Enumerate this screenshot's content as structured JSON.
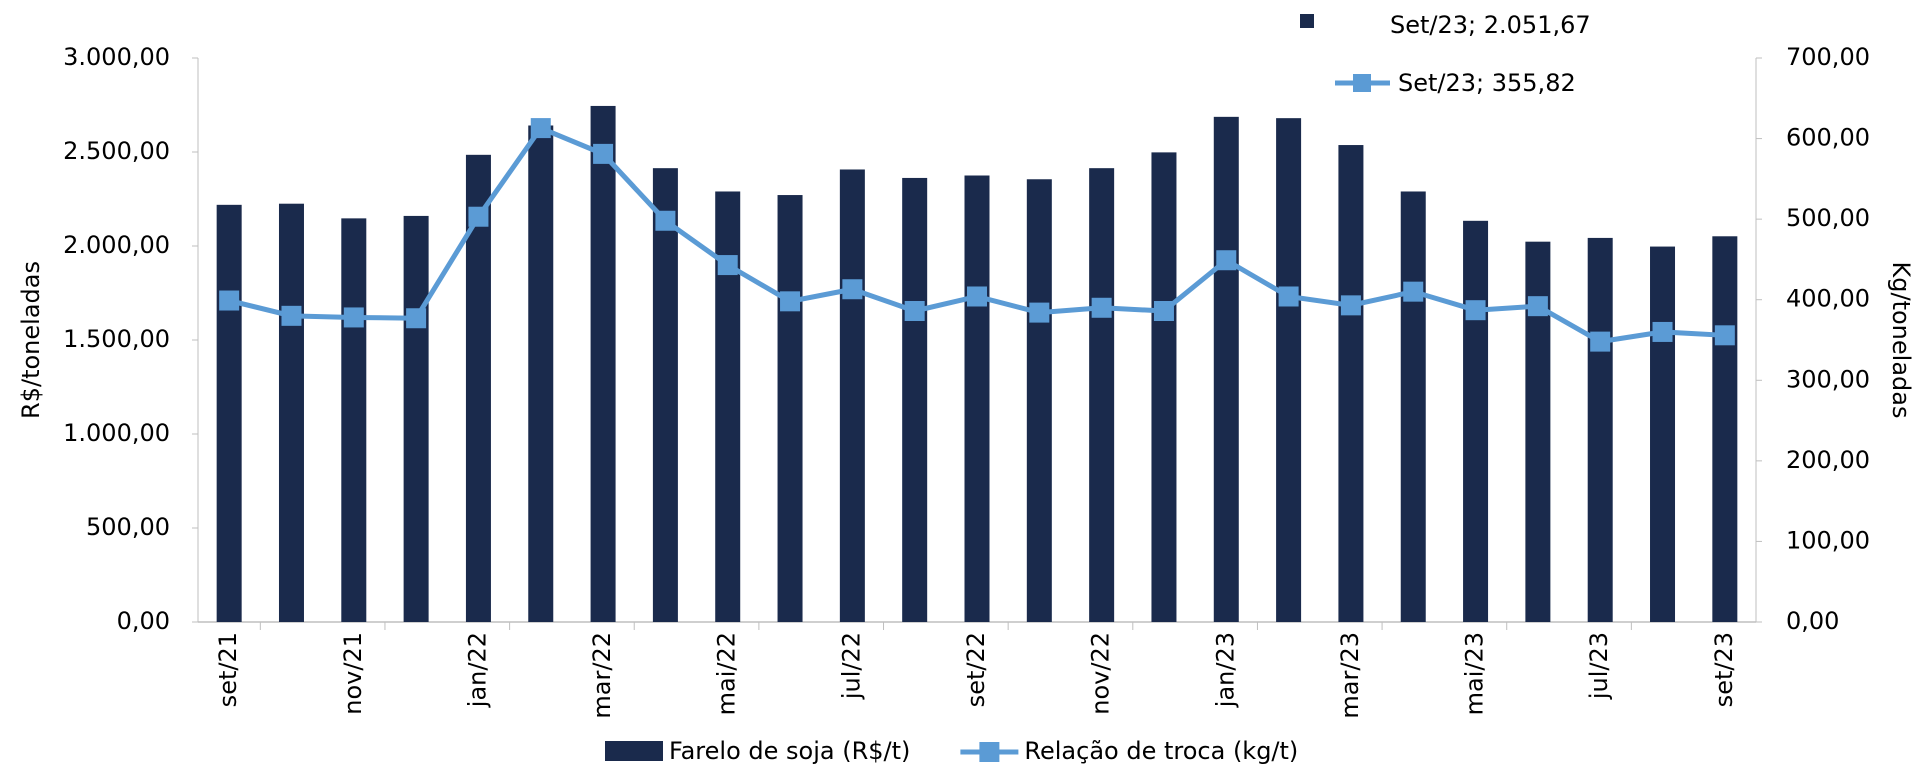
{
  "chart_data": {
    "type": "bar-line",
    "categories": [
      "set/21",
      null,
      "nov/21",
      null,
      "jan/22",
      null,
      "mar/22",
      null,
      "mai/22",
      null,
      "jul/22",
      null,
      "set/22",
      null,
      "nov/22",
      null,
      "jan/23",
      null,
      "mar/23",
      null,
      "mai/23",
      null,
      "jul/23",
      null,
      "set/23"
    ],
    "series": [
      {
        "name": "Farelo de soja (R$/t)",
        "type": "bar",
        "color": "#1a2a4c",
        "axis": "y",
        "values": [
          2219,
          2225,
          2147,
          2160,
          2485,
          2641,
          2745,
          2414,
          2290,
          2271,
          2407,
          2362,
          2375,
          2355,
          2414,
          2498,
          2687,
          2680,
          2537,
          2290,
          2134,
          2023,
          2043,
          1997,
          2051.67
        ]
      },
      {
        "name": "Relação de troca (kg/t)",
        "type": "line",
        "color": "#5b9bd5",
        "axis": "y2",
        "values": [
          399,
          380,
          378,
          377,
          503,
          613,
          581,
          498,
          443,
          398,
          413,
          386,
          404,
          384,
          390,
          386,
          449,
          404,
          393,
          410,
          387,
          392,
          348,
          360,
          355.82
        ]
      }
    ],
    "annotations": [
      "Set/23; 2.051,67",
      "Set/23; 355,82"
    ],
    "ylabel": "R$/toneladas",
    "y2label": "Kg/toneladas",
    "ylim": [
      0,
      3000
    ],
    "yticks": [
      {
        "value": 0,
        "label": "0,00"
      },
      {
        "value": 500,
        "label": "500,00"
      },
      {
        "value": 1000,
        "label": "1.000,00"
      },
      {
        "value": 1500,
        "label": "1.500,00"
      },
      {
        "value": 2000,
        "label": "2.000,00"
      },
      {
        "value": 2500,
        "label": "2.500,00"
      },
      {
        "value": 3000,
        "label": "3.000,00"
      }
    ],
    "y2lim": [
      0,
      700
    ],
    "y2ticks": [
      {
        "value": 0,
        "label": "0,00"
      },
      {
        "value": 100,
        "label": "100,00"
      },
      {
        "value": 200,
        "label": "200,00"
      },
      {
        "value": 300,
        "label": "300,00"
      },
      {
        "value": 400,
        "label": "400,00"
      },
      {
        "value": 500,
        "label": "500,00"
      },
      {
        "value": 600,
        "label": "600,00"
      },
      {
        "value": 700,
        "label": "700,00"
      }
    ],
    "legend": "bottom"
  }
}
